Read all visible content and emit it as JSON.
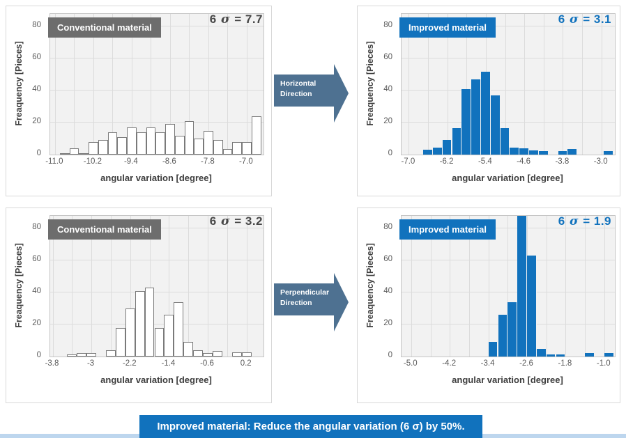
{
  "colors": {
    "blue": "#1172bd",
    "gray_box": "#6d6d6d",
    "arrow": "#4e7191",
    "plot_bg": "#f2f2f2",
    "grid": "#dcdcdc",
    "bottom_strip": "#bdd6ee"
  },
  "arrows": {
    "horizontal": {
      "line1": "Horizontal",
      "line2": "Direction"
    },
    "perpendicular": {
      "line1": "Perpendicular",
      "line2": "Direction"
    }
  },
  "caption": {
    "text": "Improved material: Reduce the angular variation (6 σ) by 50%."
  },
  "chart_data": [
    {
      "id": "horizontal-conventional",
      "type": "bar",
      "bar_style": "outline",
      "title_box": "Conventional material",
      "sigma": {
        "prefix": "6 ",
        "symbol": "σ",
        "value": " = 7.7"
      },
      "xlabel": "angular variation [degree]",
      "ylabel": "Freaquency [Pieces]",
      "ylim": [
        0,
        88
      ],
      "yticks": [
        0,
        20,
        40,
        60,
        80
      ],
      "xlim": [
        -11.1,
        -6.65
      ],
      "xticks": [
        "-11.0",
        "-10.2",
        "-9.4",
        "-8.6",
        "-7.8",
        "-7.0"
      ],
      "xtick_values": [
        -11.0,
        -10.2,
        -9.4,
        -8.6,
        -7.8,
        -7.0
      ],
      "grid_step": 0.4,
      "bin_width": 0.2,
      "bars": [
        [
          -10.8,
          1
        ],
        [
          -10.6,
          4
        ],
        [
          -10.4,
          1
        ],
        [
          -10.2,
          8
        ],
        [
          -10.0,
          9
        ],
        [
          -9.8,
          14
        ],
        [
          -9.6,
          11
        ],
        [
          -9.4,
          17
        ],
        [
          -9.2,
          14
        ],
        [
          -9.0,
          17
        ],
        [
          -8.8,
          14
        ],
        [
          -8.6,
          19
        ],
        [
          -8.4,
          12
        ],
        [
          -8.2,
          21
        ],
        [
          -8.0,
          10
        ],
        [
          -7.8,
          15
        ],
        [
          -7.6,
          9
        ],
        [
          -7.4,
          3.5
        ],
        [
          -7.2,
          8
        ],
        [
          -7.0,
          8
        ],
        [
          -6.8,
          24
        ]
      ]
    },
    {
      "id": "horizontal-improved",
      "type": "bar",
      "bar_style": "filled",
      "title_box": "Improved material",
      "sigma": {
        "prefix": "6 ",
        "symbol": "σ",
        "value": " = 3.1"
      },
      "xlabel": "angular variation [degree]",
      "ylabel": "Freaquency [Pieces]",
      "ylim": [
        0,
        88
      ],
      "yticks": [
        0,
        20,
        40,
        60,
        80
      ],
      "xlim": [
        -7.15,
        -2.72
      ],
      "xticks": [
        "-7.0",
        "-6.2",
        "-5.4",
        "-4.6",
        "-3.8",
        "-3.0"
      ],
      "xtick_values": [
        -7.0,
        -6.2,
        -5.4,
        -4.6,
        -3.8,
        -3.0
      ],
      "grid_step": 0.4,
      "bin_width": 0.2,
      "bars": [
        [
          -6.6,
          3
        ],
        [
          -6.4,
          4.5
        ],
        [
          -6.2,
          9
        ],
        [
          -6.0,
          16.5
        ],
        [
          -5.8,
          41
        ],
        [
          -5.6,
          47
        ],
        [
          -5.4,
          52
        ],
        [
          -5.2,
          37
        ],
        [
          -5.0,
          16.5
        ],
        [
          -4.8,
          4.5
        ],
        [
          -4.6,
          4
        ],
        [
          -4.4,
          2.5
        ],
        [
          -4.2,
          2
        ],
        [
          -3.8,
          2
        ],
        [
          -3.6,
          3.5
        ],
        [
          -2.85,
          2
        ]
      ]
    },
    {
      "id": "perpendicular-conventional",
      "type": "bar",
      "bar_style": "outline",
      "title_box": "Conventional material",
      "sigma": {
        "prefix": "6 ",
        "symbol": "σ",
        "value": " = 3.2"
      },
      "xlabel": "angular variation [degree]",
      "ylabel": "Freaquency [Pieces]",
      "ylim": [
        0,
        88
      ],
      "yticks": [
        0,
        20,
        40,
        60,
        80
      ],
      "xlim": [
        -3.85,
        0.55
      ],
      "xticks": [
        "-3.8",
        "-3",
        "-2.2",
        "-1.4",
        "-0.6",
        "0.2"
      ],
      "xtick_values": [
        -3.8,
        -3.0,
        -2.2,
        -1.4,
        -0.6,
        0.2
      ],
      "grid_step": 0.4,
      "bin_width": 0.2,
      "bars": [
        [
          -3.4,
          1.5
        ],
        [
          -3.2,
          2
        ],
        [
          -3.0,
          2
        ],
        [
          -2.6,
          4
        ],
        [
          -2.4,
          18
        ],
        [
          -2.2,
          30
        ],
        [
          -2.0,
          41
        ],
        [
          -1.8,
          43
        ],
        [
          -1.6,
          18
        ],
        [
          -1.4,
          26
        ],
        [
          -1.2,
          34
        ],
        [
          -1.0,
          9
        ],
        [
          -0.8,
          4
        ],
        [
          -0.6,
          2
        ],
        [
          -0.4,
          3.5
        ],
        [
          0.0,
          2.5
        ],
        [
          0.2,
          2.5
        ]
      ]
    },
    {
      "id": "perpendicular-improved",
      "type": "bar",
      "bar_style": "filled",
      "title_box": "Improved material",
      "sigma": {
        "prefix": "6 ",
        "symbol": "σ",
        "value": " = 1.9"
      },
      "xlabel": "angular variation [degree]",
      "ylabel": "Freaquency [Pieces]",
      "ylim": [
        0,
        88
      ],
      "yticks": [
        0,
        20,
        40,
        60,
        80
      ],
      "xlim": [
        -5.2,
        -0.78
      ],
      "xticks": [
        "-5.0",
        "-4.2",
        "-3.4",
        "-2.6",
        "-1.8",
        "-1.0"
      ],
      "xtick_values": [
        -5.0,
        -4.2,
        -3.4,
        -2.6,
        -1.8,
        -1.0
      ],
      "grid_step": 0.4,
      "bin_width": 0.2,
      "bars": [
        [
          -3.3,
          9
        ],
        [
          -3.1,
          26
        ],
        [
          -2.9,
          34
        ],
        [
          -2.7,
          88
        ],
        [
          -2.5,
          63
        ],
        [
          -2.3,
          5
        ],
        [
          -2.1,
          1.5
        ],
        [
          -1.9,
          1.5
        ],
        [
          -1.3,
          2
        ],
        [
          -0.9,
          2
        ]
      ]
    }
  ]
}
